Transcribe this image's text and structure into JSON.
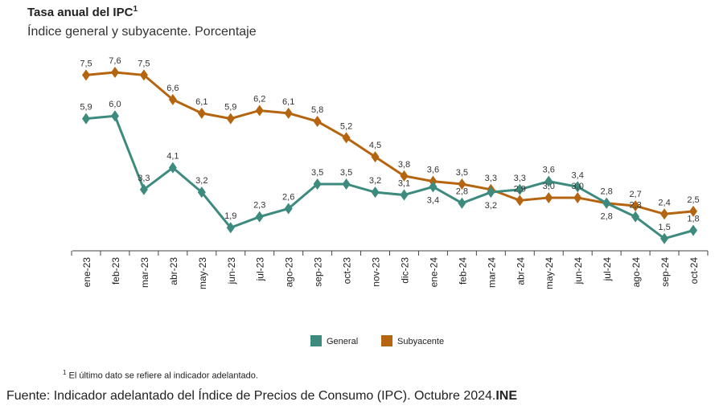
{
  "title": "Tasa anual del IPC",
  "title_sup": "1",
  "subtitle": "Índice general y subyacente. Porcentaje",
  "footnote_mark": "1",
  "footnote": "El último dato se refiere al indicador adelantado.",
  "source_label": "Fuente",
  "source_text": ": Indicador adelantado del Índice de Precios de Consumo (IPC). Octubre 2024.",
  "source_org": "INE",
  "chart_data": {
    "type": "line",
    "title": "Tasa anual del IPC",
    "xlabel": "",
    "ylabel": "Porcentaje",
    "categories": [
      "ene-23",
      "feb-23",
      "mar-23",
      "abr-23",
      "may-23",
      "jun-23",
      "jul-23",
      "ago-23",
      "sep-23",
      "oct-23",
      "nov-23",
      "dic-23",
      "ene-24",
      "feb-24",
      "mar-24",
      "abr-24",
      "may-24",
      "jun-24",
      "jul-24",
      "ago-24",
      "sep-24",
      "oct-24"
    ],
    "series": [
      {
        "name": "General",
        "color": "#3d8a7e",
        "values": [
          5.9,
          6.0,
          3.3,
          4.1,
          3.2,
          1.9,
          2.3,
          2.6,
          3.5,
          3.5,
          3.2,
          3.1,
          3.4,
          2.8,
          3.2,
          3.3,
          3.6,
          3.4,
          2.8,
          2.3,
          1.5,
          1.8
        ]
      },
      {
        "name": "Subyacente",
        "color": "#b5650f",
        "values": [
          7.5,
          7.6,
          7.5,
          6.6,
          6.1,
          5.9,
          6.2,
          6.1,
          5.8,
          5.2,
          4.5,
          3.8,
          3.6,
          3.5,
          3.3,
          2.9,
          3.0,
          3.0,
          2.8,
          2.7,
          2.4,
          2.5
        ]
      }
    ],
    "legend": "bottom",
    "grid": false
  }
}
